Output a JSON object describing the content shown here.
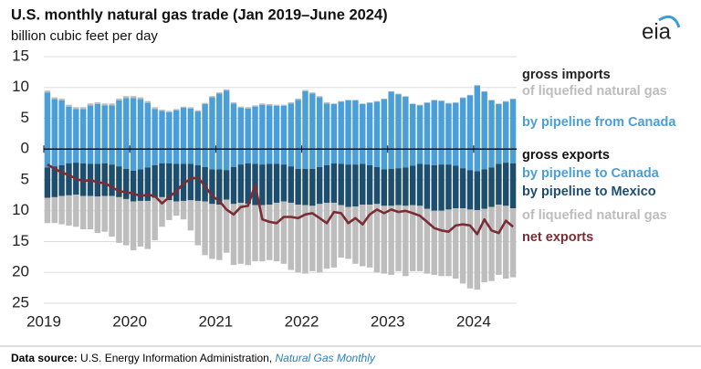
{
  "chart_data": {
    "type": "bar",
    "title": "U.S. monthly natural gas trade (Jan 2019–June 2024)",
    "subtitle": "billion cubic feet per day",
    "logo": "eia",
    "import_label": "gross imports",
    "export_label": "gross exports",
    "categories": [
      "2019",
      null,
      null,
      null,
      null,
      null,
      null,
      null,
      null,
      null,
      null,
      null,
      "2020",
      null,
      null,
      null,
      null,
      null,
      null,
      null,
      null,
      null,
      null,
      null,
      "2021",
      null,
      null,
      null,
      null,
      null,
      null,
      null,
      null,
      null,
      null,
      null,
      "2022",
      null,
      null,
      null,
      null,
      null,
      null,
      null,
      null,
      null,
      null,
      null,
      "2023",
      null,
      null,
      null,
      null,
      null,
      null,
      null,
      null,
      null,
      null,
      null,
      "2024",
      null,
      null,
      null,
      null,
      null
    ],
    "ylim": [
      -25,
      15
    ],
    "yticks": [
      15,
      10,
      5,
      0,
      {
        "value": -5,
        "label": "5"
      },
      {
        "value": -10,
        "label": "10"
      },
      {
        "value": -15,
        "label": "15"
      },
      {
        "value": -20,
        "label": "20"
      },
      {
        "value": -25,
        "label": "25"
      }
    ],
    "grid": true,
    "series": [
      {
        "name": "by pipeline from Canada",
        "color": "#4a9fd8",
        "values": [
          9.2,
          8.1,
          7.9,
          6.9,
          6.5,
          6.5,
          7.1,
          7.3,
          7.1,
          7.1,
          7.9,
          8.3,
          8.3,
          8.1,
          7.5,
          6.5,
          6.2,
          6.0,
          6.3,
          6.7,
          6.6,
          6.1,
          7.3,
          8.4,
          9.0,
          9.5,
          7.4,
          6.7,
          6.6,
          6.9,
          7.2,
          7.1,
          7.0,
          7.0,
          7.4,
          8.0,
          9.4,
          9.0,
          8.4,
          7.4,
          7.3,
          7.7,
          7.9,
          7.9,
          7.3,
          7.5,
          7.7,
          8.1,
          9.3,
          8.9,
          8.5,
          7.3,
          7.1,
          7.5,
          7.9,
          7.8,
          7.4,
          7.5,
          8.3,
          8.7,
          10.3,
          9.3,
          7.9,
          7.3,
          7.7,
          8.1
        ]
      },
      {
        "name": "of liquefied natural gas",
        "color": "#bdbdbd",
        "values": [
          0.3,
          0.3,
          0.3,
          0.3,
          0.3,
          0.3,
          0.3,
          0.3,
          0.3,
          0.3,
          0.3,
          0.3,
          0.3,
          0.3,
          0.3,
          0.3,
          0.2,
          0.2,
          0.2,
          0.2,
          0.2,
          0.2,
          0.2,
          0.2,
          0.2,
          0.2,
          0.2,
          0.2,
          0.2,
          0.2,
          0.2,
          0.2,
          0.2,
          0.2,
          0.2,
          0.2,
          0.2,
          0.2,
          0.2,
          0.2,
          0.1,
          0.1,
          0.1,
          0.1,
          0.1,
          0.1,
          0.1,
          0.1,
          0.1,
          0.1,
          0.1,
          0.1,
          0.1,
          0.1,
          0.1,
          0.1,
          0.1,
          0.1,
          0.1,
          0.1,
          0.1,
          0.1,
          0.1,
          0.1,
          0.1,
          0.1
        ]
      },
      {
        "name": "by pipeline to Canada",
        "color": "#4a9fd8",
        "values": [
          -3.0,
          -2.8,
          -2.6,
          -2.3,
          -2.2,
          -2.3,
          -2.4,
          -2.4,
          -2.3,
          -2.5,
          -2.8,
          -3.2,
          -3.5,
          -3.3,
          -3.0,
          -2.6,
          -2.3,
          -2.3,
          -2.4,
          -2.4,
          -2.4,
          -2.6,
          -2.9,
          -3.3,
          -3.3,
          -3.4,
          -2.9,
          -2.5,
          -2.3,
          -2.4,
          -2.5,
          -2.4,
          -2.4,
          -2.5,
          -2.8,
          -3.2,
          -3.2,
          -3.2,
          -2.9,
          -2.6,
          -2.3,
          -2.4,
          -2.5,
          -2.5,
          -2.4,
          -2.6,
          -2.9,
          -3.3,
          -3.2,
          -3.1,
          -3.0,
          -2.7,
          -2.4,
          -2.5,
          -2.6,
          -2.5,
          -2.5,
          -2.7,
          -3.1,
          -3.4,
          -3.6,
          -3.3,
          -3.0,
          -2.4,
          -2.2,
          -2.3
        ]
      },
      {
        "name": "by pipeline to Mexico",
        "color": "#1d4e6e",
        "values": [
          -4.9,
          -5.0,
          -5.0,
          -5.2,
          -5.2,
          -5.3,
          -5.2,
          -5.3,
          -5.3,
          -5.1,
          -5.0,
          -4.9,
          -5.0,
          -5.1,
          -5.4,
          -5.3,
          -5.5,
          -6.0,
          -6.1,
          -6.0,
          -5.9,
          -5.8,
          -5.6,
          -5.6,
          -5.7,
          -4.8,
          -6.0,
          -6.2,
          -6.6,
          -6.7,
          -6.6,
          -6.6,
          -6.3,
          -6.0,
          -5.9,
          -5.8,
          -5.9,
          -6.0,
          -6.0,
          -6.1,
          -6.4,
          -6.7,
          -6.9,
          -6.8,
          -6.6,
          -6.4,
          -6.0,
          -5.9,
          -6.0,
          -6.0,
          -6.2,
          -6.4,
          -6.8,
          -7.2,
          -7.4,
          -7.5,
          -7.3,
          -6.9,
          -6.5,
          -6.4,
          -6.3,
          -6.4,
          -6.4,
          -6.6,
          -7.0,
          -7.3
        ]
      },
      {
        "name": "of liquefied natural gas",
        "color": "#bdbdbd",
        "values": [
          -4.1,
          -4.2,
          -4.6,
          -4.9,
          -5.2,
          -5.4,
          -5.4,
          -5.9,
          -5.8,
          -6.6,
          -7.4,
          -7.5,
          -7.9,
          -7.4,
          -7.8,
          -6.9,
          -4.8,
          -3.2,
          -2.3,
          -3.0,
          -4.9,
          -7.2,
          -8.7,
          -8.9,
          -9.0,
          -8.6,
          -9.9,
          -9.9,
          -9.9,
          -9.1,
          -9.1,
          -9.0,
          -9.5,
          -10.1,
          -10.9,
          -11.0,
          -11.1,
          -10.6,
          -11.1,
          -10.7,
          -10.5,
          -8.5,
          -8.4,
          -9.3,
          -10.0,
          -10.2,
          -11.1,
          -11.0,
          -11.2,
          -10.7,
          -11.4,
          -10.7,
          -10.6,
          -10.5,
          -10.4,
          -10.6,
          -10.8,
          -11.4,
          -12.2,
          -12.8,
          -12.9,
          -11.9,
          -12.0,
          -11.4,
          -11.8,
          -11.2
        ]
      },
      {
        "name": "net exports",
        "color": "#7b2c35",
        "type": "line",
        "values": [
          -2.5,
          -3.2,
          -3.8,
          -4.2,
          -4.8,
          -5.2,
          -5.0,
          -5.4,
          -5.5,
          -6.2,
          -6.8,
          -7.0,
          -7.2,
          -7.6,
          -7.4,
          -7.6,
          -8.8,
          -7.8,
          -6.8,
          -5.6,
          -4.8,
          -4.6,
          -6.0,
          -7.6,
          -8.4,
          -9.8,
          -10.6,
          -9.4,
          -9.2,
          -5.8,
          -11.4,
          -11.8,
          -12.0,
          -11.0,
          -11.0,
          -11.2,
          -10.6,
          -10.4,
          -11.2,
          -12.0,
          -10.2,
          -10.4,
          -12.0,
          -11.2,
          -12.2,
          -10.6,
          -9.8,
          -10.4,
          -9.8,
          -10.2,
          -10.0,
          -10.4,
          -10.8,
          -11.8,
          -12.8,
          -13.2,
          -13.4,
          -12.4,
          -12.2,
          -12.4,
          -13.8,
          -11.4,
          -13.2,
          -13.6,
          -11.6,
          -12.6
        ]
      }
    ],
    "source_label": "Data source:",
    "source": "U.S. Energy Information Administration,",
    "source_title": "Natural Gas Monthly"
  }
}
